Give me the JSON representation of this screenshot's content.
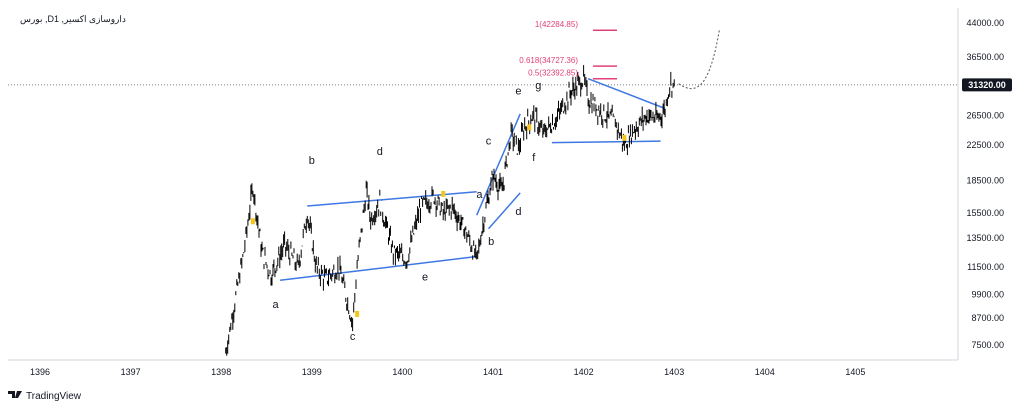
{
  "header": {
    "symbol_title": "بورس ,Dداروسازی اکسیر, 1"
  },
  "branding": {
    "logo_text": "TradingView"
  },
  "chart_data": {
    "type": "line",
    "title": "بورس ,Dداروسازی اکسیر, 1",
    "xlabel": "",
    "ylabel": "",
    "y_scale": "log",
    "x_ticks": [
      "1396",
      "1397",
      "1398",
      "1399",
      "1400",
      "1401",
      "1402",
      "1403",
      "1404",
      "1405"
    ],
    "y_ticks": [
      44000.0,
      36500.0,
      26500.0,
      22500.0,
      18500.0,
      15500.0,
      13500.0,
      11500.0,
      9900.0,
      8700.0,
      7500.0
    ],
    "y_tick_labels": [
      "44000.00",
      "36500.00",
      "26500.00",
      "22500.00",
      "18500.00",
      "15500.00",
      "13500.00",
      "11500.00",
      "9900.00",
      "8700.00",
      "7500.00"
    ],
    "current_price": 31320.0,
    "current_price_label": "31320.00",
    "grid": false,
    "series": [
      {
        "values_x": [
          1398.05,
          1398.15,
          1398.25,
          1398.35,
          1398.45,
          1398.55,
          1398.7,
          1398.85,
          1398.95,
          1399.05,
          1399.15,
          1399.3,
          1399.45,
          1399.5,
          1399.6,
          1399.65,
          1399.75,
          1399.9,
          1400.05,
          1400.2,
          1400.35,
          1400.45,
          1400.55,
          1400.7,
          1400.82,
          1400.9,
          1401.0,
          1401.1,
          1401.2,
          1401.28,
          1401.35,
          1401.45,
          1401.55,
          1401.7,
          1401.85,
          1402.0,
          1402.05,
          1402.2,
          1402.35,
          1402.45,
          1402.55,
          1402.7,
          1402.82,
          1402.9,
          1402.95,
          1403.0
        ],
        "values": [
          7200,
          9500,
          12500,
          18000,
          12500,
          11000,
          13000,
          11500,
          15500,
          11500,
          10800,
          11500,
          8500,
          11500,
          17500,
          15000,
          16500,
          12500,
          12000,
          16000,
          17000,
          15500,
          16000,
          14000,
          12000,
          15000,
          19000,
          17500,
          24000,
          22000,
          25000,
          26500,
          24000,
          26000,
          30000,
          32400,
          29000,
          27000,
          25500,
          22500,
          24500,
          26500,
          26000,
          27500,
          31500,
          31320
        ]
      }
    ],
    "wave_labels": [
      {
        "label": "a",
        "x": 1398.6,
        "y": 9200
      },
      {
        "label": "b",
        "x": 1399.0,
        "y": 20300
      },
      {
        "label": "c",
        "x": 1399.45,
        "y": 7700
      },
      {
        "label": "d",
        "x": 1399.75,
        "y": 21300
      },
      {
        "label": "e",
        "x": 1400.25,
        "y": 10700
      },
      {
        "label": "a",
        "x": 1400.85,
        "y": 16800
      },
      {
        "label": "b",
        "x": 1400.98,
        "y": 13000
      },
      {
        "label": "c",
        "x": 1400.95,
        "y": 22600
      },
      {
        "label": "d",
        "x": 1401.28,
        "y": 15300
      },
      {
        "label": "e",
        "x": 1401.28,
        "y": 29700
      },
      {
        "label": "f",
        "x": 1401.45,
        "y": 20600
      },
      {
        "label": "g",
        "x": 1401.5,
        "y": 30600
      }
    ],
    "fib_targets": [
      {
        "label": "1(42284.85)",
        "value": 42284.85
      },
      {
        "label": "0.618(34727.36)",
        "value": 34727.36
      },
      {
        "label": "0.5(32392.85)",
        "value": 32392.85
      }
    ],
    "colors": {
      "candles": "#000000",
      "trendlines": "#3d78e3",
      "fib_targets": "#e0407a",
      "markers": "#f5c518",
      "price_tag": "#131722",
      "dotted_projection": "#555555"
    }
  }
}
